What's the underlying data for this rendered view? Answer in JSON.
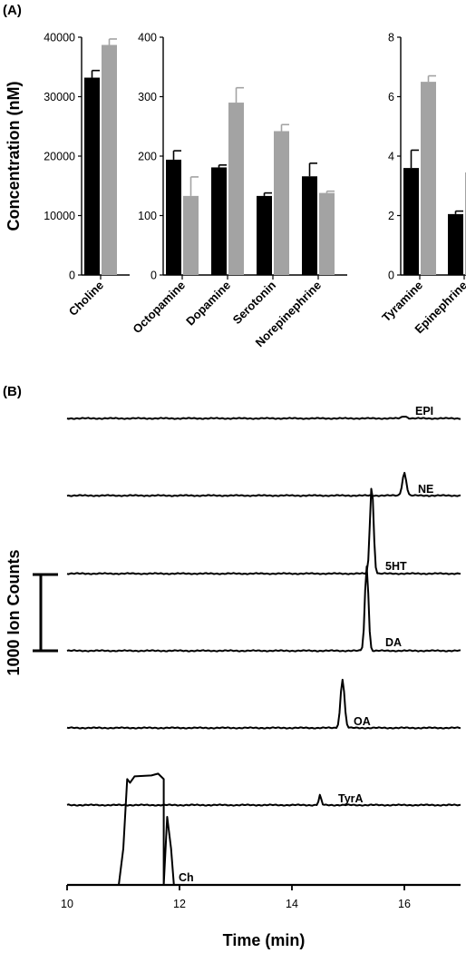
{
  "panels": {
    "a_label": "(A)",
    "b_label": "(B)"
  },
  "colors": {
    "series_1": "#000000",
    "series_2": "#a3a3a3",
    "trace": "#000000"
  },
  "chart_data": [
    {
      "type": "bar",
      "title": "",
      "ylabel": "Concentration (nM)",
      "legend": "none",
      "groups": [
        {
          "categories": [
            "Choline"
          ],
          "ylim": [
            0,
            40000
          ],
          "yticks": [
            "0",
            "10000",
            "20000",
            "30000",
            "40000"
          ],
          "series": [
            {
              "values": [
                33200
              ],
              "errors": [
                1200
              ]
            },
            {
              "values": [
                38700
              ],
              "errors": [
                1000
              ]
            }
          ]
        },
        {
          "categories": [
            "Octopamine",
            "Dopamine",
            "Serotonin",
            "Norepinephrine"
          ],
          "ylim": [
            0,
            400
          ],
          "yticks": [
            "0",
            "100",
            "200",
            "300",
            "400"
          ],
          "series": [
            {
              "values": [
                194,
                181,
                133,
                166
              ],
              "errors": [
                15,
                4,
                5,
                22
              ]
            },
            {
              "values": [
                133,
                290,
                242,
                138
              ],
              "errors": [
                32,
                25,
                11,
                3
              ]
            }
          ]
        },
        {
          "categories": [
            "Tyramine",
            "Epinephrine"
          ],
          "ylim": [
            0,
            8
          ],
          "yticks": [
            "0",
            "2",
            "4",
            "6",
            "8"
          ],
          "series": [
            {
              "values": [
                3.6,
                2.05
              ],
              "errors": [
                0.6,
                0.1
              ]
            },
            {
              "values": [
                6.5,
                3.45
              ],
              "errors": [
                0.2,
                0.25
              ]
            }
          ]
        }
      ]
    },
    {
      "type": "line",
      "title": "",
      "xlabel": "Time (min)",
      "xlim": [
        10,
        17
      ],
      "xticks": [
        "10",
        "12",
        "14",
        "16"
      ],
      "scale_bar_label": "1000 Ion Counts",
      "scale_bar_value": 1000,
      "traces": [
        {
          "label": "EPI",
          "peaks": [
            {
              "t": 16.0,
              "h": 30
            }
          ]
        },
        {
          "label": "NE",
          "peaks": [
            {
              "t": 16.0,
              "h": 300
            }
          ]
        },
        {
          "label": "5HT",
          "peaks": [
            {
              "t": 15.42,
              "h": 1160
            }
          ]
        },
        {
          "label": "DA",
          "peaks": [
            {
              "t": 15.33,
              "h": 1110
            }
          ]
        },
        {
          "label": "OA",
          "peaks": [
            {
              "t": 14.9,
              "h": 640
            }
          ]
        },
        {
          "label": "TyrA",
          "peaks": [
            {
              "t": 14.5,
              "h": 130
            }
          ]
        },
        {
          "label": "Ch",
          "peaks": [
            {
              "t": 11.4,
              "h": 1460
            }
          ]
        }
      ]
    }
  ]
}
